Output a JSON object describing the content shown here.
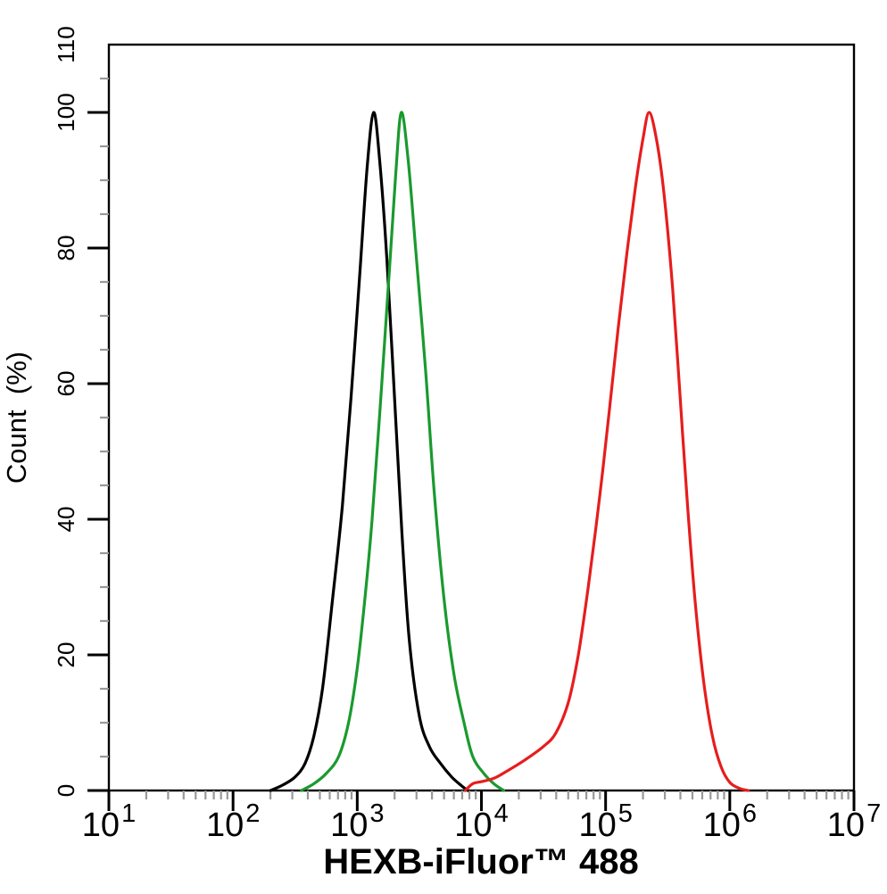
{
  "chart_data": {
    "type": "line",
    "subtype": "flow-cytometry-histogram",
    "title": "",
    "xlabel": "HEXB-iFluor™ 488",
    "ylabel": "Count  (%)",
    "x_scale": "log10",
    "x_range": [
      10,
      10000000
    ],
    "y_range": [
      0,
      110
    ],
    "x_ticks": {
      "base": "10",
      "exponents": [
        1,
        2,
        3,
        4,
        5,
        6,
        7
      ]
    },
    "y_labels": [
      0,
      20,
      40,
      60,
      80,
      100,
      110
    ],
    "y_major_ticks": [
      0,
      20,
      40,
      60,
      80,
      100
    ],
    "y_minor_step": 5,
    "grid": false,
    "legend": "none",
    "background_color": "#ffffff",
    "axis_color": "#000000",
    "minor_tick_color": "#999999",
    "series": [
      {
        "name": "black",
        "color": "#000000",
        "points": [
          [
            200,
            0
          ],
          [
            251,
            0.8
          ],
          [
            316,
            2
          ],
          [
            380,
            4
          ],
          [
            447,
            8
          ],
          [
            525,
            15
          ],
          [
            631,
            28
          ],
          [
            759,
            42
          ],
          [
            891,
            58
          ],
          [
            1047,
            76
          ],
          [
            1202,
            92
          ],
          [
            1355,
            100
          ],
          [
            1514,
            93
          ],
          [
            1738,
            78
          ],
          [
            1995,
            58
          ],
          [
            2291,
            38
          ],
          [
            2630,
            22
          ],
          [
            3162,
            11
          ],
          [
            3802,
            6.5
          ],
          [
            4677,
            4
          ],
          [
            5754,
            2
          ],
          [
            6918,
            0.7
          ],
          [
            7762,
            0
          ]
        ]
      },
      {
        "name": "green",
        "color": "#1a9a2e",
        "points": [
          [
            355,
            0
          ],
          [
            447,
            1
          ],
          [
            562,
            2.5
          ],
          [
            708,
            5
          ],
          [
            851,
            10
          ],
          [
            1000,
            18
          ],
          [
            1148,
            28
          ],
          [
            1318,
            40
          ],
          [
            1549,
            58
          ],
          [
            1820,
            77
          ],
          [
            2042,
            91
          ],
          [
            2265,
            100
          ],
          [
            2570,
            93
          ],
          [
            2951,
            80
          ],
          [
            3548,
            62
          ],
          [
            4169,
            44
          ],
          [
            5012,
            28
          ],
          [
            6026,
            17
          ],
          [
            7244,
            10
          ],
          [
            8511,
            5
          ],
          [
            10471,
            2.5
          ],
          [
            12589,
            1
          ],
          [
            15136,
            0
          ]
        ]
      },
      {
        "name": "red",
        "color": "#e61d1d",
        "points": [
          [
            7413,
            0
          ],
          [
            8511,
            1
          ],
          [
            10000,
            1.3
          ],
          [
            12589,
            1.8
          ],
          [
            15849,
            2.8
          ],
          [
            22387,
            4.5
          ],
          [
            31623,
            6.5
          ],
          [
            39811,
            8.5
          ],
          [
            50119,
            13
          ],
          [
            60256,
            20
          ],
          [
            72444,
            30
          ],
          [
            89125,
            43
          ],
          [
            107152,
            56
          ],
          [
            125893,
            68
          ],
          [
            147911,
            79
          ],
          [
            173780,
            89
          ],
          [
            199526,
            96
          ],
          [
            223872,
            100
          ],
          [
            257040,
            96
          ],
          [
            295121,
            88
          ],
          [
            346737,
            74
          ],
          [
            398107,
            58
          ],
          [
            457088,
            42
          ],
          [
            524807,
            28
          ],
          [
            616595,
            16
          ],
          [
            724436,
            8
          ],
          [
            851138,
            3.5
          ],
          [
            1000000,
            1.2
          ],
          [
            1202264,
            0.3
          ],
          [
            1412538,
            0
          ]
        ]
      }
    ]
  }
}
